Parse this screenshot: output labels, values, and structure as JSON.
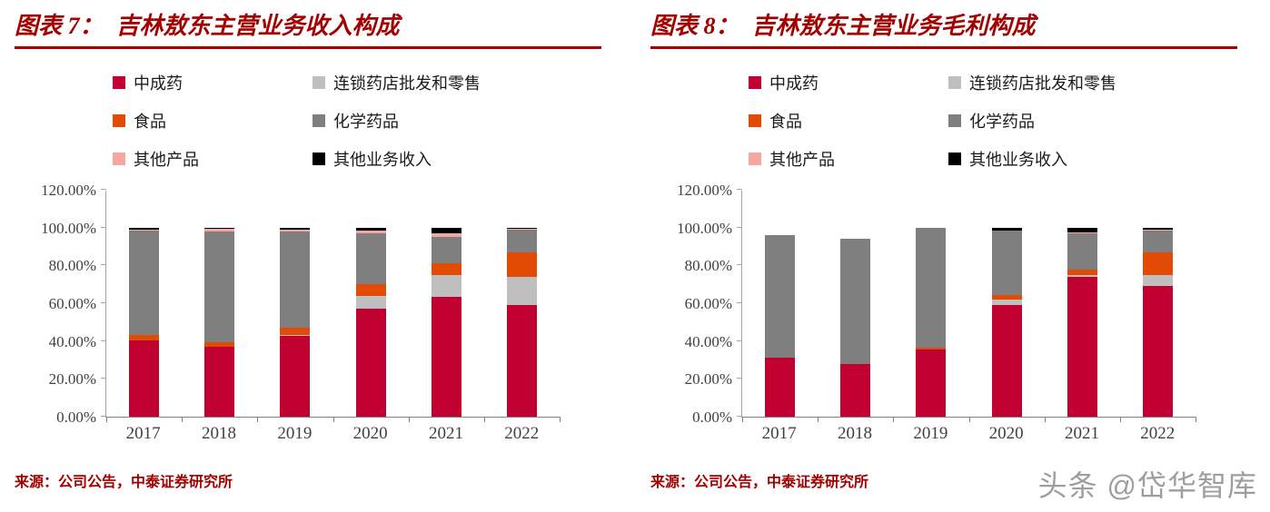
{
  "watermark": "头条 @岱华智库",
  "panels": [
    {
      "title_prefix": "图表 7：",
      "title": "吉林敖东主营业务收入构成",
      "source": "来源：公司公告，中泰证券研究所"
    },
    {
      "title_prefix": "图表 8：",
      "title": "吉林敖东主营业务毛利构成",
      "source": "来源：公司公告，中泰证券研究所"
    }
  ],
  "chart_data": [
    {
      "type": "bar",
      "stacked": true,
      "title": "图表 7：吉林敖东主营业务收入构成",
      "xlabel": "",
      "ylabel": "",
      "unit": "%",
      "ylim": [
        0,
        120
      ],
      "legend_position": "top",
      "grid": false,
      "categories": [
        "2017",
        "2018",
        "2019",
        "2020",
        "2021",
        "2022"
      ],
      "yticks": [
        {
          "value": 0,
          "label": "0.00%"
        },
        {
          "value": 20,
          "label": "20.00%"
        },
        {
          "value": 40,
          "label": "40.00%"
        },
        {
          "value": 60,
          "label": "60.00%"
        },
        {
          "value": 80,
          "label": "80.00%"
        },
        {
          "value": 100,
          "label": "100.00%"
        },
        {
          "value": 120,
          "label": "120.00%"
        }
      ],
      "series": [
        {
          "name": "中成药",
          "color": "#c00030",
          "values": [
            40.5,
            37.0,
            42.5,
            57.0,
            63.5,
            59.0
          ]
        },
        {
          "name": "连锁药店批发和零售",
          "color": "#bfbfbf",
          "values": [
            0.0,
            0.0,
            0.5,
            7.0,
            11.5,
            15.0
          ]
        },
        {
          "name": "食品",
          "color": "#e14b04",
          "values": [
            2.5,
            2.5,
            4.0,
            6.0,
            6.0,
            13.0
          ]
        },
        {
          "name": "化学药品",
          "color": "#7f7f7f",
          "values": [
            55.5,
            58.5,
            51.0,
            27.0,
            14.0,
            12.0
          ]
        },
        {
          "name": "其他产品",
          "color": "#f4a7a0",
          "values": [
            0.5,
            1.5,
            1.0,
            1.5,
            2.0,
            0.5
          ]
        },
        {
          "name": "其他业务收入",
          "color": "#000000",
          "values": [
            1.0,
            0.5,
            1.0,
            1.5,
            3.0,
            0.5
          ]
        }
      ]
    },
    {
      "type": "bar",
      "stacked": true,
      "title": "图表 8：吉林敖东主营业务毛利构成",
      "xlabel": "",
      "ylabel": "",
      "unit": "%",
      "ylim": [
        0,
        120
      ],
      "legend_position": "top",
      "grid": false,
      "categories": [
        "2017",
        "2018",
        "2019",
        "2020",
        "2021",
        "2022"
      ],
      "yticks": [
        {
          "value": 0,
          "label": "0.00%"
        },
        {
          "value": 20,
          "label": "20.00%"
        },
        {
          "value": 40,
          "label": "40.00%"
        },
        {
          "value": 60,
          "label": "60.00%"
        },
        {
          "value": 80,
          "label": "80.00%"
        },
        {
          "value": 100,
          "label": "100.00%"
        },
        {
          "value": 120,
          "label": "120.00%"
        }
      ],
      "series": [
        {
          "name": "中成药",
          "color": "#c00030",
          "values": [
            31.0,
            28.0,
            35.5,
            59.0,
            74.0,
            69.0
          ]
        },
        {
          "name": "连锁药店批发和零售",
          "color": "#bfbfbf",
          "values": [
            0.0,
            0.0,
            0.0,
            3.0,
            1.0,
            6.0
          ]
        },
        {
          "name": "食品",
          "color": "#e14b04",
          "values": [
            0.0,
            0.0,
            1.0,
            2.5,
            3.0,
            12.0
          ]
        },
        {
          "name": "化学药品",
          "color": "#7f7f7f",
          "values": [
            65.0,
            66.0,
            63.5,
            34.0,
            19.0,
            11.5
          ]
        },
        {
          "name": "其他产品",
          "color": "#f4a7a0",
          "values": [
            0.0,
            0.0,
            0.0,
            0.0,
            0.5,
            0.5
          ]
        },
        {
          "name": "其他业务收入",
          "color": "#000000",
          "values": [
            0.0,
            0.0,
            0.0,
            1.5,
            2.5,
            1.0
          ]
        }
      ]
    }
  ]
}
